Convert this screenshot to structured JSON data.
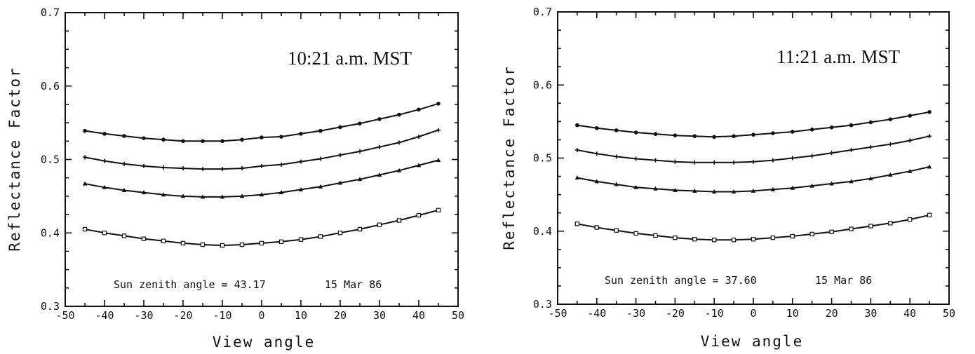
{
  "chart_data": [
    {
      "type": "line",
      "time_label": "10:21 a.m. MST",
      "note_left": "Sun zenith angle = 43.17",
      "note_right": "15 Mar 86",
      "xlabel": "View angle",
      "ylabel": "Reflectance Factor",
      "xlim": [
        -50,
        50
      ],
      "ylim": [
        0.3,
        0.7
      ],
      "xticks": [
        "-50",
        "-40",
        "-30",
        "-20",
        "-10",
        "0",
        "10",
        "20",
        "30",
        "40",
        "50"
      ],
      "yticks": [
        "0.3",
        "0.4",
        "0.5",
        "0.6",
        "0.7"
      ],
      "x": [
        -45,
        -40,
        -35,
        -30,
        -25,
        -20,
        -15,
        -10,
        -5,
        0,
        5,
        10,
        15,
        20,
        25,
        30,
        35,
        40,
        45
      ],
      "series": [
        {
          "marker": "circle",
          "values": [
            0.539,
            0.535,
            0.532,
            0.529,
            0.527,
            0.525,
            0.525,
            0.525,
            0.527,
            0.53,
            0.531,
            0.535,
            0.539,
            0.544,
            0.549,
            0.555,
            0.561,
            0.568,
            0.576
          ]
        },
        {
          "marker": "plus",
          "values": [
            0.503,
            0.498,
            0.494,
            0.491,
            0.489,
            0.488,
            0.487,
            0.487,
            0.488,
            0.491,
            0.493,
            0.497,
            0.501,
            0.506,
            0.511,
            0.517,
            0.523,
            0.531,
            0.54
          ]
        },
        {
          "marker": "triangle",
          "values": [
            0.467,
            0.462,
            0.458,
            0.455,
            0.452,
            0.45,
            0.449,
            0.449,
            0.45,
            0.452,
            0.455,
            0.459,
            0.463,
            0.468,
            0.473,
            0.479,
            0.485,
            0.492,
            0.499
          ]
        },
        {
          "marker": "square",
          "values": [
            0.405,
            0.4,
            0.396,
            0.392,
            0.389,
            0.386,
            0.384,
            0.383,
            0.384,
            0.386,
            0.388,
            0.391,
            0.395,
            0.4,
            0.405,
            0.411,
            0.417,
            0.424,
            0.431
          ]
        }
      ]
    },
    {
      "type": "line",
      "time_label": "11:21 a.m. MST",
      "note_left": "Sun zenith angle = 37.60",
      "note_right": "15 Mar 86",
      "xlabel": "View angle",
      "ylabel": "Reflectance Factor",
      "xlim": [
        -50,
        50
      ],
      "ylim": [
        0.3,
        0.7
      ],
      "xticks": [
        "-50",
        "-40",
        "-30",
        "-20",
        "-10",
        "0",
        "10",
        "20",
        "30",
        "40",
        "50"
      ],
      "yticks": [
        "0.3",
        "0.4",
        "0.5",
        "0.6",
        "0.7"
      ],
      "x": [
        -45,
        -40,
        -35,
        -30,
        -25,
        -20,
        -15,
        -10,
        -5,
        0,
        5,
        10,
        15,
        20,
        25,
        30,
        35,
        40,
        45
      ],
      "series": [
        {
          "marker": "circle",
          "values": [
            0.545,
            0.541,
            0.538,
            0.535,
            0.533,
            0.531,
            0.53,
            0.529,
            0.53,
            0.532,
            0.534,
            0.536,
            0.539,
            0.542,
            0.545,
            0.549,
            0.553,
            0.558,
            0.563
          ]
        },
        {
          "marker": "plus",
          "values": [
            0.511,
            0.506,
            0.502,
            0.499,
            0.497,
            0.495,
            0.494,
            0.494,
            0.494,
            0.495,
            0.497,
            0.5,
            0.503,
            0.507,
            0.511,
            0.515,
            0.519,
            0.524,
            0.53
          ]
        },
        {
          "marker": "triangle",
          "values": [
            0.473,
            0.468,
            0.464,
            0.46,
            0.458,
            0.456,
            0.455,
            0.454,
            0.454,
            0.455,
            0.457,
            0.459,
            0.462,
            0.465,
            0.468,
            0.472,
            0.477,
            0.482,
            0.488
          ]
        },
        {
          "marker": "square",
          "values": [
            0.41,
            0.405,
            0.401,
            0.397,
            0.394,
            0.391,
            0.389,
            0.388,
            0.388,
            0.389,
            0.391,
            0.393,
            0.396,
            0.399,
            0.403,
            0.407,
            0.411,
            0.416,
            0.422
          ]
        }
      ]
    }
  ]
}
